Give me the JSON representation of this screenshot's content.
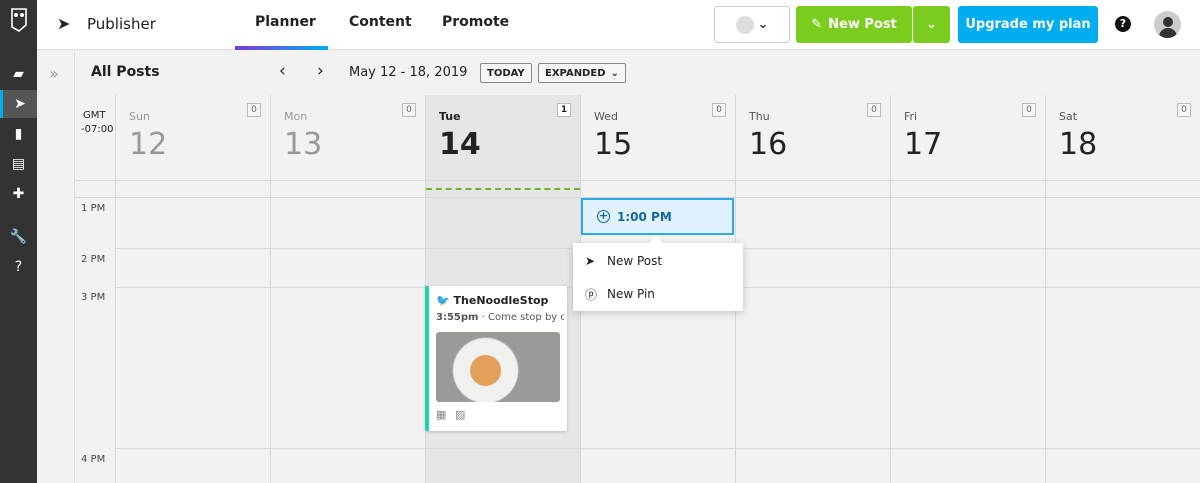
{
  "sidebar": {
    "icons": [
      "owl-logo-icon",
      "streams-icon",
      "publisher-icon",
      "analytics-icon",
      "assignments-icon",
      "apps-icon",
      "tools-icon",
      "help-icon"
    ]
  },
  "header": {
    "title": "Publisher",
    "tabs": [
      {
        "label": "Planner",
        "active": true
      },
      {
        "label": "Content"
      },
      {
        "label": "Promote"
      }
    ],
    "new_post": "New Post",
    "upgrade": "Upgrade my plan",
    "colors": {
      "green": "#7acd1e",
      "blue": "#00aeef"
    }
  },
  "toolbar": {
    "title": "All Posts",
    "date_range": "May 12 - 18, 2019",
    "today": "TODAY",
    "view": "EXPANDED"
  },
  "calendar": {
    "timezone": "GMT",
    "offset": "-07:00",
    "days": [
      {
        "name": "Sun",
        "num": "12",
        "count": "0"
      },
      {
        "name": "Mon",
        "num": "13",
        "count": "0"
      },
      {
        "name": "Tue",
        "num": "14",
        "count": "1"
      },
      {
        "name": "Wed",
        "num": "15",
        "count": "0"
      },
      {
        "name": "Thu",
        "num": "16",
        "count": "0"
      },
      {
        "name": "Fri",
        "num": "17",
        "count": "0"
      },
      {
        "name": "Sat",
        "num": "18",
        "count": "0"
      }
    ],
    "times": [
      "1 PM",
      "2 PM",
      "3 PM",
      "4 PM"
    ],
    "slot": "1:00 PM",
    "menu": [
      "New Post",
      "New Pin"
    ],
    "post": {
      "account": "TheNoodleStop",
      "time": "3:55pm",
      "text": "· Come stop by ou"
    }
  }
}
